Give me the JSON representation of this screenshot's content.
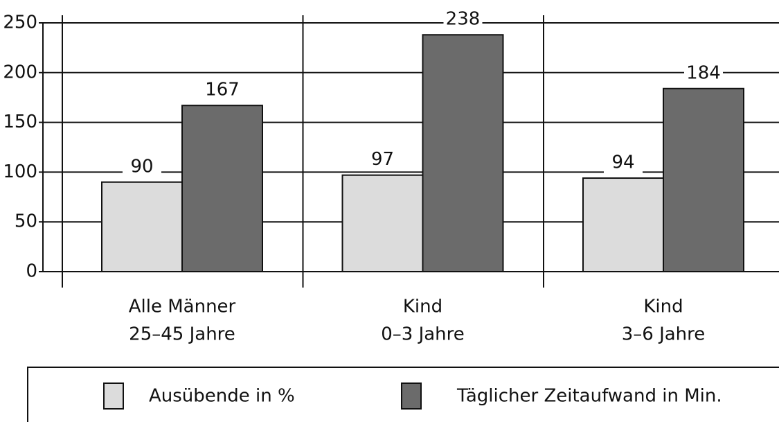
{
  "chart_data": {
    "type": "bar",
    "categories": [
      [
        "Alle Männer",
        "25–45 Jahre"
      ],
      [
        "Kind",
        "0–3 Jahre"
      ],
      [
        "Kind",
        "3–6 Jahre"
      ]
    ],
    "series": [
      {
        "name": "Ausübende in %",
        "color": "#dcdcdc",
        "values": [
          90,
          97,
          94
        ]
      },
      {
        "name": "Täglicher Zeitaufwand in Min.",
        "color": "#6b6b6b",
        "values": [
          167,
          238,
          184
        ]
      }
    ],
    "ylim": [
      0,
      250
    ],
    "yticks": [
      0,
      50,
      100,
      150,
      200,
      250
    ],
    "grid": true
  }
}
